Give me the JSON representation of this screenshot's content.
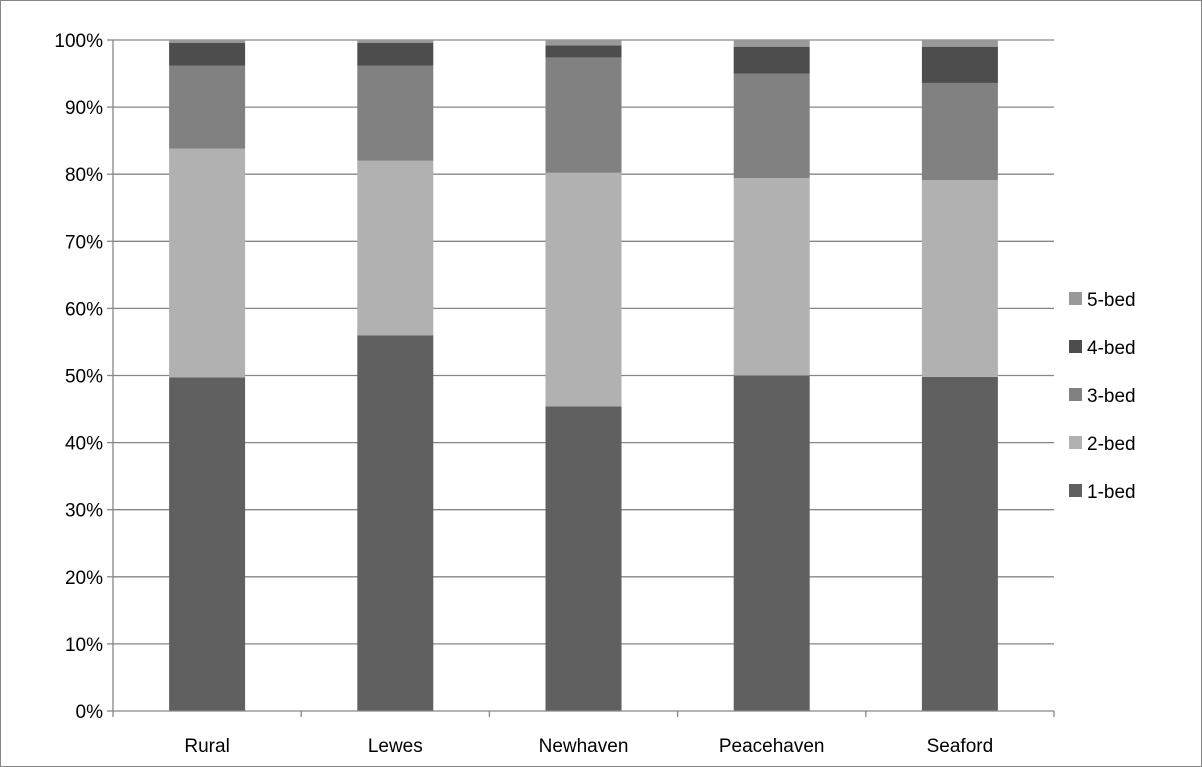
{
  "chart_data": {
    "type": "bar",
    "stacked": true,
    "categories": [
      "Rural",
      "Lewes",
      "Newhaven",
      "Peacehaven",
      "Seaford"
    ],
    "series": [
      {
        "name": "1-bed",
        "color": "#606060",
        "values": [
          49.7,
          56.0,
          45.4,
          50.0,
          49.8
        ]
      },
      {
        "name": "2-bed",
        "color": "#b1b1b1",
        "values": [
          34.1,
          26.0,
          34.8,
          29.4,
          29.3
        ]
      },
      {
        "name": "3-bed",
        "color": "#818181",
        "values": [
          12.4,
          14.2,
          17.2,
          15.6,
          14.5
        ]
      },
      {
        "name": "4-bed",
        "color": "#4d4d4d",
        "values": [
          3.4,
          3.4,
          1.8,
          4.0,
          5.4
        ]
      },
      {
        "name": "5-bed",
        "color": "#999999",
        "values": [
          0.4,
          0.4,
          0.8,
          1.0,
          1.0
        ]
      }
    ],
    "ylim": [
      0,
      100
    ],
    "yticks": [
      "0%",
      "10%",
      "20%",
      "30%",
      "40%",
      "50%",
      "60%",
      "70%",
      "80%",
      "90%",
      "100%"
    ],
    "grid": true,
    "legend_position": "right",
    "xlabel": "",
    "ylabel": "",
    "title": ""
  }
}
